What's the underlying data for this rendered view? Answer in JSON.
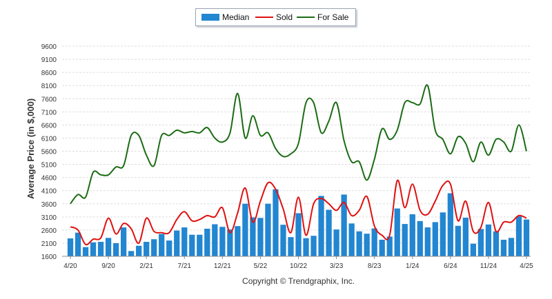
{
  "chart_data": {
    "type": "bar+line",
    "ylabel": "Average Price (in $,000)",
    "ylim": [
      1600,
      9600
    ],
    "yticks": [
      1600,
      2100,
      2600,
      3100,
      3600,
      4100,
      4600,
      5100,
      5600,
      6100,
      6600,
      7100,
      7600,
      8100,
      8600,
      9100,
      9600
    ],
    "xtick_labels": [
      {
        "label": "4/20",
        "index": 0
      },
      {
        "label": "9/20",
        "index": 5
      },
      {
        "label": "2/21",
        "index": 10
      },
      {
        "label": "7/21",
        "index": 15
      },
      {
        "label": "12/21",
        "index": 20
      },
      {
        "label": "5/22",
        "index": 25
      },
      {
        "label": "10/22",
        "index": 30
      },
      {
        "label": "3/23",
        "index": 35
      },
      {
        "label": "8/23",
        "index": 40
      },
      {
        "label": "1/24",
        "index": 45
      },
      {
        "label": "6/24",
        "index": 50
      },
      {
        "label": "11/24",
        "index": 55
      },
      {
        "label": "4/25",
        "index": 60
      }
    ],
    "legend": {
      "position": "top-center",
      "items": [
        "Median",
        "Sold",
        "For Sale"
      ]
    },
    "grid": true,
    "colors": {
      "median": "#2286d1",
      "sold": "#e01010",
      "for_sale": "#1a6b14"
    },
    "series": [
      {
        "name": "Median",
        "type": "bar",
        "values": [
          2280,
          2500,
          1950,
          2130,
          2150,
          2300,
          2100,
          2700,
          1800,
          2000,
          2150,
          2250,
          2450,
          2200,
          2580,
          2700,
          2420,
          2420,
          2650,
          2820,
          2720,
          2620,
          2750,
          3600,
          3080,
          3060,
          3600,
          4150,
          2800,
          2330,
          3240,
          2290,
          2380,
          3900,
          3370,
          2620,
          3950,
          2850,
          2550,
          2460,
          2660,
          2230,
          2350,
          3420,
          2830,
          3200,
          2940,
          2700,
          2900,
          3270,
          4000,
          2760,
          3070,
          2080,
          2640,
          2810,
          2550,
          2230,
          2300,
          3120,
          3000
        ]
      },
      {
        "name": "Sold",
        "type": "line",
        "values": [
          2720,
          2600,
          2050,
          2250,
          2300,
          3050,
          2450,
          2850,
          2650,
          2100,
          3050,
          2550,
          2500,
          2500,
          3000,
          3300,
          2950,
          3000,
          3150,
          3100,
          3450,
          2500,
          3250,
          4200,
          2900,
          3700,
          4400,
          4150,
          3400,
          2500,
          3850,
          2400,
          3600,
          3800,
          3600,
          3350,
          3650,
          3150,
          3350,
          3880,
          2750,
          2400,
          2400,
          4480,
          3450,
          4350,
          3350,
          3200,
          3700,
          4300,
          4350,
          2950,
          3700,
          2550,
          2700,
          3650,
          2550,
          2900,
          2900,
          3150,
          3050
        ]
      },
      {
        "name": "For Sale",
        "type": "line",
        "values": [
          3600,
          3950,
          3850,
          4800,
          4700,
          4700,
          5000,
          5050,
          6200,
          6200,
          5450,
          5050,
          6200,
          6200,
          6400,
          6300,
          6350,
          6300,
          6500,
          6100,
          5950,
          6300,
          7800,
          6100,
          6950,
          6200,
          6300,
          5700,
          5400,
          5500,
          5900,
          7450,
          7450,
          6300,
          6750,
          7450,
          6000,
          5200,
          5200,
          4500,
          5300,
          6450,
          6050,
          6400,
          7450,
          7450,
          7400,
          8100,
          6400,
          6050,
          5500,
          6150,
          5900,
          5200,
          5950,
          5450,
          6050,
          5950,
          5600,
          6600,
          5600
        ]
      }
    ]
  },
  "legend": {
    "median": "Median",
    "sold": "Sold",
    "for_sale": "For Sale"
  },
  "footer": {
    "copyright": "Copyright © Trendgraphix, Inc."
  }
}
